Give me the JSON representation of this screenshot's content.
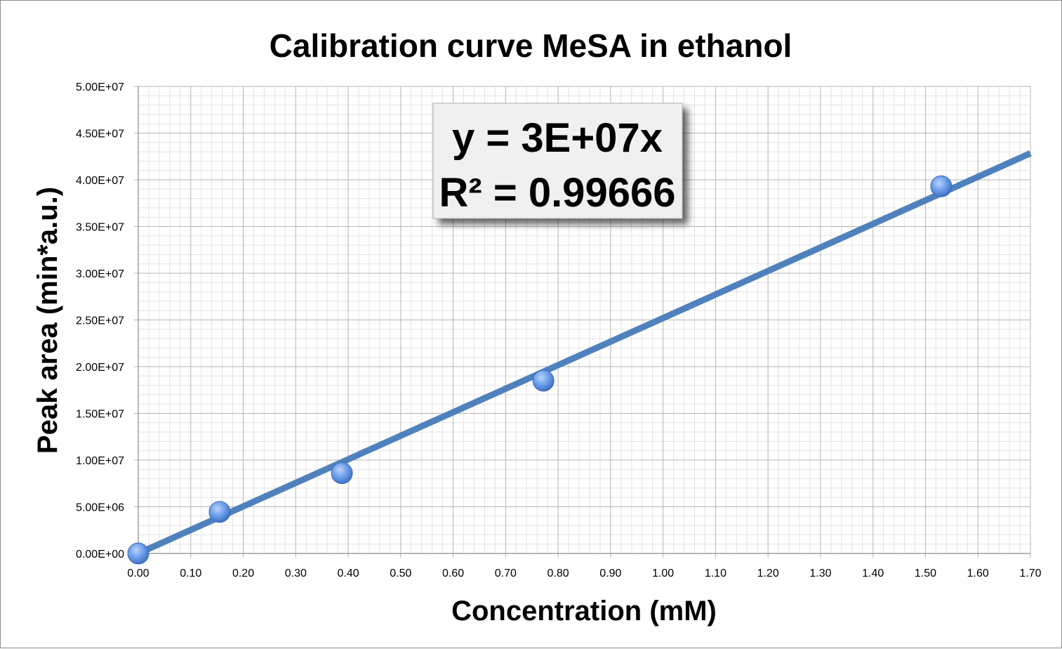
{
  "chart_data": {
    "type": "scatter",
    "title": "Calibration curve MeSA in ethanol",
    "xlabel": "Concentration (mM)",
    "ylabel": "Peak area (min*a.u.)",
    "xlim": [
      0,
      1.7
    ],
    "ylim": [
      0,
      50000000
    ],
    "x_ticks": [
      "0.00",
      "0.10",
      "0.20",
      "0.30",
      "0.40",
      "0.50",
      "0.60",
      "0.70",
      "0.80",
      "0.90",
      "1.00",
      "1.10",
      "1.20",
      "1.30",
      "1.40",
      "1.50",
      "1.60",
      "1.70"
    ],
    "y_ticks": [
      "0.00E+00",
      "5.00E+06",
      "1.00E+07",
      "1.50E+07",
      "2.00E+07",
      "2.50E+07",
      "3.00E+07",
      "3.50E+07",
      "4.00E+07",
      "4.50E+07",
      "5.00E+07"
    ],
    "grid": true,
    "series": [
      {
        "points": [
          {
            "x": 0.0,
            "y": 0
          },
          {
            "x": 0.155,
            "y": 4450000
          },
          {
            "x": 0.388,
            "y": 8600000
          },
          {
            "x": 0.772,
            "y": 18500000
          },
          {
            "x": 1.53,
            "y": 39300000
          }
        ],
        "color": "#5b8fe0"
      }
    ],
    "trendline": {
      "slope": 25200000,
      "intercept": 0,
      "x_range": [
        0,
        1.7
      ],
      "color": "#4f81bd"
    },
    "annotation": {
      "equation": "y = 3E+07x",
      "r2": "R² = 0.99666"
    }
  }
}
